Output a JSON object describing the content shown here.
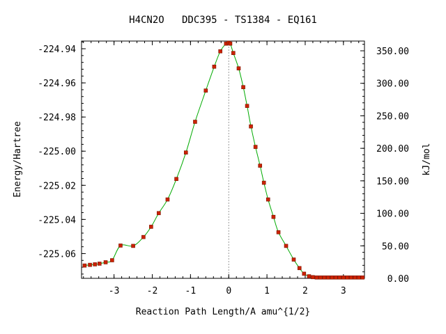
{
  "chart_data": {
    "type": "line",
    "title": "H4CN2O   DDC395 - TS1384 - EQ161",
    "xlabel": "Reaction Path Length/A amu^{1/2}",
    "ylabel": "Energy/Hartree",
    "y2label": "kJ/mol",
    "xlim": [
      -3.85,
      3.55
    ],
    "ylim": [
      -225.0745,
      -224.9355
    ],
    "y2lim": [
      0,
      365
    ],
    "xticks": [
      -3,
      -2,
      -1,
      0,
      1,
      2,
      3
    ],
    "xtick_labels": [
      "-3",
      "-2",
      "-1",
      "0",
      "1",
      "2",
      "3"
    ],
    "yticks": [
      -224.94,
      -224.96,
      -224.98,
      -225.0,
      -225.02,
      -225.04,
      -225.06
    ],
    "ytick_labels": [
      "-224.94",
      "-224.96",
      "-224.98",
      "-225.00",
      "-225.02",
      "-225.04",
      "-225.06"
    ],
    "y2ticks": [
      350,
      300,
      250,
      200,
      150,
      100,
      50,
      0
    ],
    "y2tick_labels": [
      "350.00",
      "300.00",
      "250.00",
      "200.00",
      "150.00",
      "100.00",
      "50.00",
      "0.00"
    ],
    "ts_marker_x": 0,
    "grid": false,
    "line_color": "#00aa00",
    "marker_color": "#cc2200",
    "x": [
      -3.77,
      -3.63,
      -3.5,
      -3.38,
      -3.22,
      -3.05,
      -2.83,
      -2.5,
      -2.23,
      -2.03,
      -1.83,
      -1.6,
      -1.37,
      -1.12,
      -0.88,
      -0.6,
      -0.38,
      -0.22,
      -0.07,
      0.0,
      0.04,
      0.12,
      0.26,
      0.38,
      0.48,
      0.58,
      0.7,
      0.82,
      0.92,
      1.03,
      1.17,
      1.3,
      1.5,
      1.7,
      1.85,
      1.97,
      2.1,
      2.2,
      2.3,
      2.4,
      2.5,
      2.6,
      2.7,
      2.8,
      2.9,
      3.0,
      3.1,
      3.2,
      3.3,
      3.4,
      3.5
    ],
    "y": [
      -225.067,
      -225.0666,
      -225.0663,
      -225.0659,
      -225.0651,
      -225.0639,
      -225.0553,
      -225.0555,
      -225.0503,
      -225.0443,
      -225.0363,
      -225.0283,
      -225.0163,
      -225.0008,
      -224.9828,
      -224.9645,
      -224.9505,
      -224.9415,
      -224.937,
      -224.9365,
      -224.937,
      -224.9425,
      -224.9515,
      -224.9625,
      -224.9735,
      -224.9855,
      -224.9975,
      -225.0085,
      -225.0185,
      -225.0283,
      -225.0385,
      -225.0475,
      -225.0555,
      -225.0635,
      -225.0685,
      -225.0718,
      -225.0733,
      -225.0738,
      -225.074,
      -225.074,
      -225.074,
      -225.074,
      -225.074,
      -225.074,
      -225.074,
      -225.074,
      -225.074,
      -225.074,
      -225.074,
      -225.074,
      -225.074
    ]
  }
}
